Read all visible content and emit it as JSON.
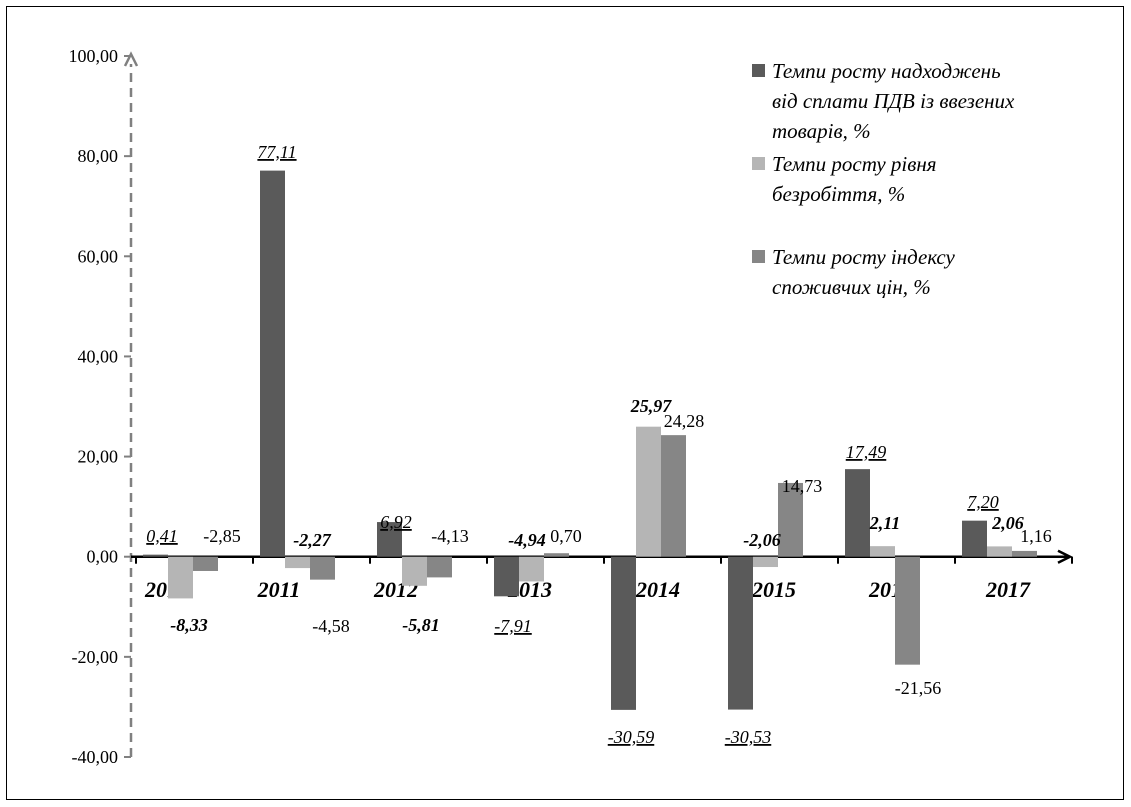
{
  "chart_data": {
    "type": "bar",
    "categories": [
      "2010",
      "2011",
      "2012",
      "2013",
      "2014",
      "2015",
      "2016",
      "2017"
    ],
    "series": [
      {
        "name": "Темпи росту надходжень від сплати ПДВ із ввезених товарів, %",
        "legend_lines": [
          "Темпи росту надходжень",
          "від сплати ПДВ із ввезених",
          "товарів, %"
        ],
        "color": "#5a5a5a",
        "values": [
          0.41,
          77.11,
          6.92,
          -7.91,
          -30.59,
          -30.53,
          17.49,
          7.2
        ],
        "labels": [
          "0,41",
          "77,11",
          "6,92",
          "-7,91",
          "-30,59",
          "-30,53",
          "17,49",
          "7,20"
        ]
      },
      {
        "name": "Темпи росту рівня безробіття, %",
        "legend_lines": [
          "Темпи росту рівня",
          "безробіття, %"
        ],
        "color": "#b5b5b5",
        "values": [
          -8.33,
          -2.27,
          -5.81,
          -4.94,
          25.97,
          -2.06,
          2.11,
          2.06
        ],
        "labels": [
          "-8,33",
          "-2,27",
          "-5,81",
          "-4,94",
          "25,97",
          "-2,06",
          "2,11",
          "2,06"
        ]
      },
      {
        "name": "Темпи росту індексу споживчих цін, %",
        "legend_lines": [
          "Темпи росту індексу",
          "споживчих цін, %"
        ],
        "color": "#868686",
        "values": [
          -2.85,
          -4.58,
          -4.13,
          0.7,
          24.28,
          14.73,
          -21.56,
          1.16
        ],
        "labels": [
          "-2,85",
          "-4,58",
          "-4,13",
          "0,70",
          "24,28",
          "14,73",
          "-21,56",
          "1,16"
        ]
      }
    ],
    "yticks": [
      "100,00",
      "80,00",
      "60,00",
      "40,00",
      "20,00",
      "0,00",
      "-20,00",
      "-40,00"
    ],
    "ylim": [
      -40,
      100
    ],
    "legend_position": "top-right",
    "grid": false,
    "title": "",
    "xlabel": "",
    "ylabel": ""
  }
}
